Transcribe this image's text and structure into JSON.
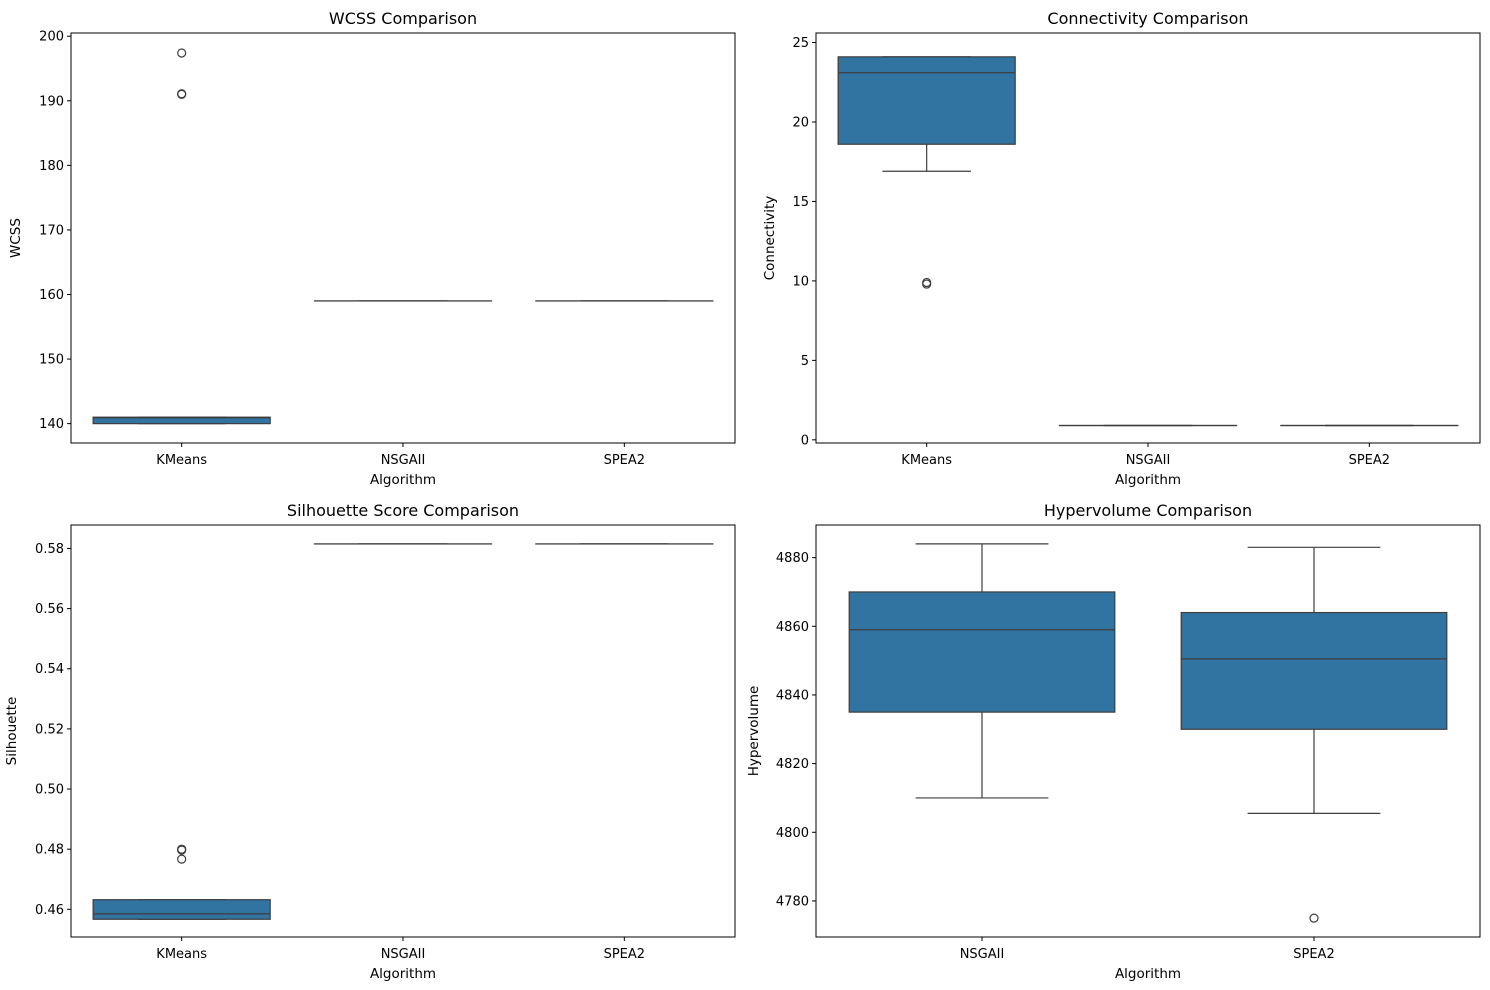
{
  "style": {
    "box_fill": "#3274a1",
    "line_color": "#3d3d3d",
    "axis_color": "#000000"
  },
  "chart_data": [
    {
      "type": "box",
      "title": "WCSS Comparison",
      "xlabel": "Algorithm",
      "ylabel": "WCSS",
      "ylim": [
        137,
        200.5
      ],
      "yticks": [
        140,
        150,
        160,
        170,
        180,
        190,
        200
      ],
      "categories": [
        "KMeans",
        "NSGAII",
        "SPEA2"
      ],
      "boxes": [
        {
          "q1": 140.0,
          "median": 140.9,
          "q3": 141.0,
          "whisker_low": 140.0,
          "whisker_high": 141.0,
          "outliers": [
            191.1,
            191.0,
            197.4
          ]
        },
        {
          "q1": 159.0,
          "median": 159.0,
          "q3": 159.0,
          "whisker_low": 159.0,
          "whisker_high": 159.0,
          "outliers": []
        },
        {
          "q1": 159.0,
          "median": 159.0,
          "q3": 159.0,
          "whisker_low": 159.0,
          "whisker_high": 159.0,
          "outliers": []
        }
      ]
    },
    {
      "type": "box",
      "title": "Connectivity Comparison",
      "xlabel": "Algorithm",
      "ylabel": "Connectivity",
      "ylim": [
        -0.2,
        25.6
      ],
      "yticks": [
        0,
        5,
        10,
        15,
        20,
        25
      ],
      "categories": [
        "KMeans",
        "NSGAII",
        "SPEA2"
      ],
      "boxes": [
        {
          "q1": 18.6,
          "median": 23.1,
          "q3": 24.1,
          "whisker_low": 16.9,
          "whisker_high": 24.1,
          "outliers": [
            9.8,
            9.9
          ]
        },
        {
          "q1": 0.9,
          "median": 0.9,
          "q3": 0.9,
          "whisker_low": 0.9,
          "whisker_high": 0.9,
          "outliers": []
        },
        {
          "q1": 0.9,
          "median": 0.9,
          "q3": 0.9,
          "whisker_low": 0.9,
          "whisker_high": 0.9,
          "outliers": []
        }
      ]
    },
    {
      "type": "box",
      "title": "Silhouette Score Comparison",
      "xlabel": "Algorithm",
      "ylabel": "Silhouette",
      "ylim": [
        0.4508,
        0.5878
      ],
      "yticks": [
        0.46,
        0.48,
        0.5,
        0.52,
        0.54,
        0.56,
        0.58
      ],
      "ytick_labels": [
        "0.46",
        "0.48",
        "0.50",
        "0.52",
        "0.54",
        "0.56",
        "0.58"
      ],
      "categories": [
        "KMeans",
        "NSGAII",
        "SPEA2"
      ],
      "boxes": [
        {
          "q1": 0.4567,
          "median": 0.4585,
          "q3": 0.4632,
          "whisker_low": 0.4567,
          "whisker_high": 0.4632,
          "outliers": [
            0.4767,
            0.48,
            0.4797
          ]
        },
        {
          "q1": 0.5815,
          "median": 0.5815,
          "q3": 0.5815,
          "whisker_low": 0.5815,
          "whisker_high": 0.5815,
          "outliers": []
        },
        {
          "q1": 0.5815,
          "median": 0.5815,
          "q3": 0.5815,
          "whisker_low": 0.5815,
          "whisker_high": 0.5815,
          "outliers": []
        }
      ]
    },
    {
      "type": "box",
      "title": "Hypervolume Comparison",
      "xlabel": "Algorithm",
      "ylabel": "Hypervolume",
      "ylim": [
        4769.5,
        4889.5
      ],
      "yticks": [
        4780,
        4800,
        4820,
        4840,
        4860,
        4880
      ],
      "categories": [
        "NSGAII",
        "SPEA2"
      ],
      "boxes": [
        {
          "q1": 4835.0,
          "median": 4859.0,
          "q3": 4870.0,
          "whisker_low": 4810.0,
          "whisker_high": 4884.0,
          "outliers": []
        },
        {
          "q1": 4830.0,
          "median": 4850.5,
          "q3": 4864.0,
          "whisker_low": 4805.5,
          "whisker_high": 4883.0,
          "outliers": [
            4775.0
          ]
        }
      ]
    }
  ]
}
